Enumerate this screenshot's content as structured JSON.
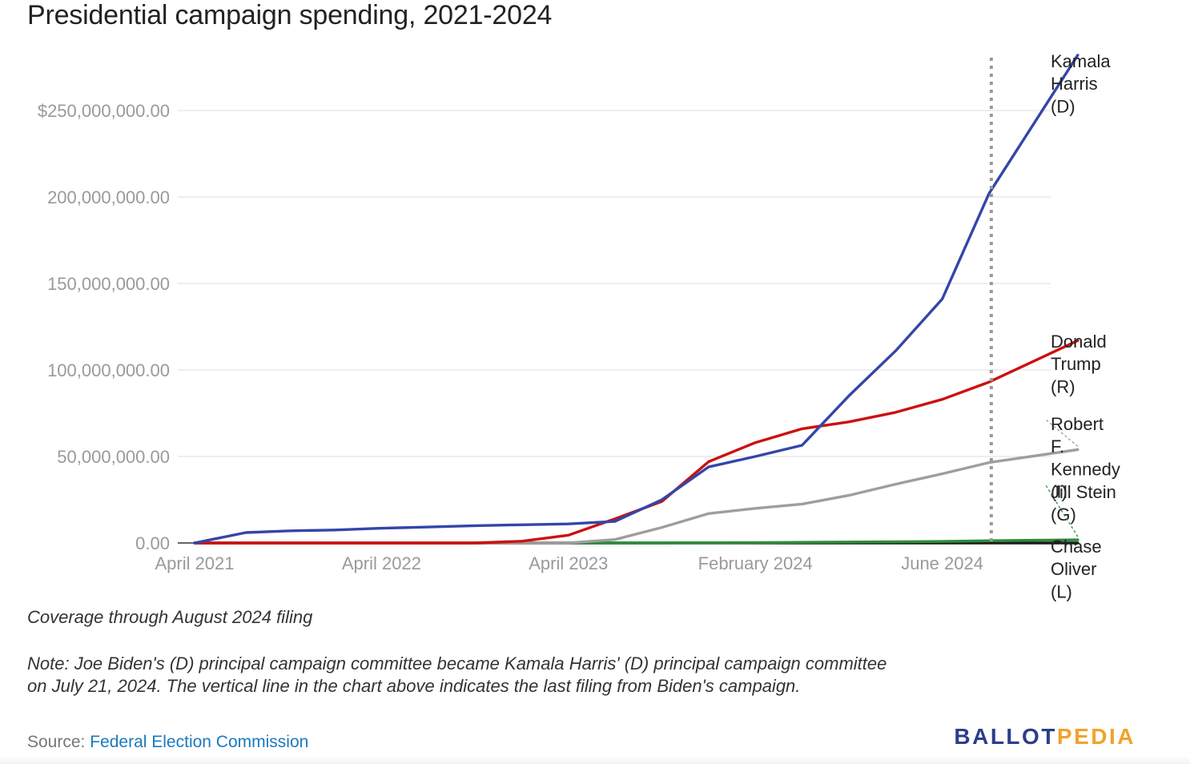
{
  "header": {
    "title": "Presidential campaign spending, 2021-2024"
  },
  "chart_data": {
    "type": "line",
    "title": "Presidential campaign spending, 2021-2024",
    "xlabel": "",
    "ylabel": "",
    "ylim": [
      0,
      280000000
    ],
    "y_ticks": [
      0,
      50000000,
      100000000,
      150000000,
      200000000,
      250000000
    ],
    "y_tick_labels": [
      "0.00",
      "50,000,000.00",
      "100,000,000.00",
      "150,000,000.00",
      "200,000,000.00",
      "$250,000,000.00"
    ],
    "x_tick_labels": [
      "April 2021",
      "April 2022",
      "April 2023",
      "February 2024",
      "June 2024"
    ],
    "x_tick_indices": [
      0,
      4,
      8,
      12,
      16
    ],
    "x_range": [
      0,
      18.9
    ],
    "grid": true,
    "legend": "direct labels at right end of lines",
    "annotation": "vertical dotted line marking the last filing from Biden's campaign",
    "vertical_line_x": 17.05,
    "series": [
      {
        "name": "Kamala Harris (D)",
        "label_lines": [
          "Kamala",
          "Harris",
          "(D)"
        ],
        "color": "#3346a8",
        "x": [
          0,
          1.1,
          2,
          3,
          4,
          5,
          6,
          7,
          8,
          9,
          10,
          11,
          12,
          13,
          14,
          15,
          16,
          17,
          18.9
        ],
        "values": [
          0,
          6000000,
          7000000,
          7500000,
          8500000,
          9200000,
          10000000,
          10500000,
          11000000,
          12500000,
          25000000,
          44000000,
          50000000,
          56500000,
          85000000,
          111000000,
          141000000,
          202000000,
          282000000
        ]
      },
      {
        "name": "Donald Trump (R)",
        "label_lines": [
          "Donald",
          "Trump",
          "(R)"
        ],
        "color": "#cc1010",
        "x": [
          0,
          1,
          2,
          3,
          4,
          5,
          6,
          7,
          8,
          9,
          10,
          11,
          12,
          13,
          14,
          15,
          16,
          17,
          18.9
        ],
        "values": [
          0,
          0,
          0,
          0,
          0,
          0,
          0,
          1000000,
          4500000,
          14000000,
          24000000,
          47000000,
          58000000,
          66000000,
          70000000,
          75500000,
          83000000,
          93000000,
          117000000
        ]
      },
      {
        "name": "Robert F. Kennedy (I)",
        "label_lines": [
          "Robert",
          "F.",
          "Kennedy",
          "(I)"
        ],
        "color": "#9e9e9e",
        "x": [
          0,
          1,
          2,
          3,
          4,
          5,
          6,
          7,
          8,
          9,
          10,
          11,
          12,
          13,
          14,
          15,
          16,
          17,
          18.9
        ],
        "values": [
          0,
          0,
          0,
          0,
          0,
          0,
          0,
          0,
          0,
          2000000,
          9000000,
          17000000,
          20000000,
          22500000,
          27500000,
          34000000,
          40000000,
          46500000,
          54000000
        ]
      },
      {
        "name": "Jill Stein (G)",
        "label_lines": [
          "Jill Stein",
          "(G)"
        ],
        "color": "#2e8b3a",
        "x": [
          0,
          6,
          10,
          12,
          14,
          16,
          17,
          18.9
        ],
        "values": [
          0,
          0,
          0,
          200000,
          500000,
          900000,
          1300000,
          1800000
        ]
      },
      {
        "name": "Chase Oliver (L)",
        "label_lines": [
          "Chase",
          "Oliver",
          "(L)"
        ],
        "color": "#1a1a1a",
        "x": [
          0,
          18.9
        ],
        "values": [
          0,
          0
        ]
      }
    ]
  },
  "notes": {
    "coverage": "Coverage through August 2024 filing",
    "note": "Note: Joe Biden's (D) principal campaign committee became Kamala Harris' (D) principal campaign committee on July 21, 2024. The vertical line in the chart above indicates the last filing from Biden's campaign."
  },
  "footer": {
    "source_prefix": "Source: ",
    "source_link": "Federal Election Commission",
    "brand_part1": "BALLOT",
    "brand_part2": "PEDIA"
  }
}
